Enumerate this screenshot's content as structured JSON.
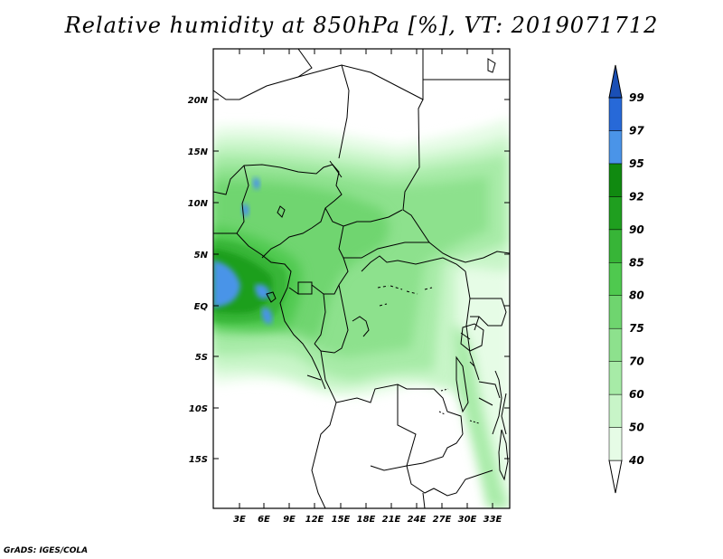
{
  "title": "Relative humidity at 850hPa [%], VT: 2019071712",
  "credit": "GrADS: IGES/COLA",
  "map": {
    "lat_labels": [
      "20N",
      "15N",
      "10N",
      "5N",
      "EQ",
      "5S",
      "10S",
      "15S"
    ],
    "lon_labels": [
      "3E",
      "6E",
      "9E",
      "12E",
      "15E",
      "18E",
      "21E",
      "24E",
      "27E",
      "30E",
      "33E"
    ],
    "field_variable": "Relative humidity",
    "units": "%"
  },
  "colorbar": {
    "levels": [
      "40",
      "50",
      "60",
      "70",
      "75",
      "80",
      "85",
      "90",
      "92",
      "95",
      "97",
      "99"
    ],
    "colors": [
      "#ffffff",
      "#e6fce6",
      "#c8f5c8",
      "#a7eba7",
      "#8de18d",
      "#6fd56f",
      "#4fc94f",
      "#37b537",
      "#1f9f1f",
      "#108a10",
      "#4a94e8",
      "#2769d8",
      "#1a4fb5"
    ]
  }
}
